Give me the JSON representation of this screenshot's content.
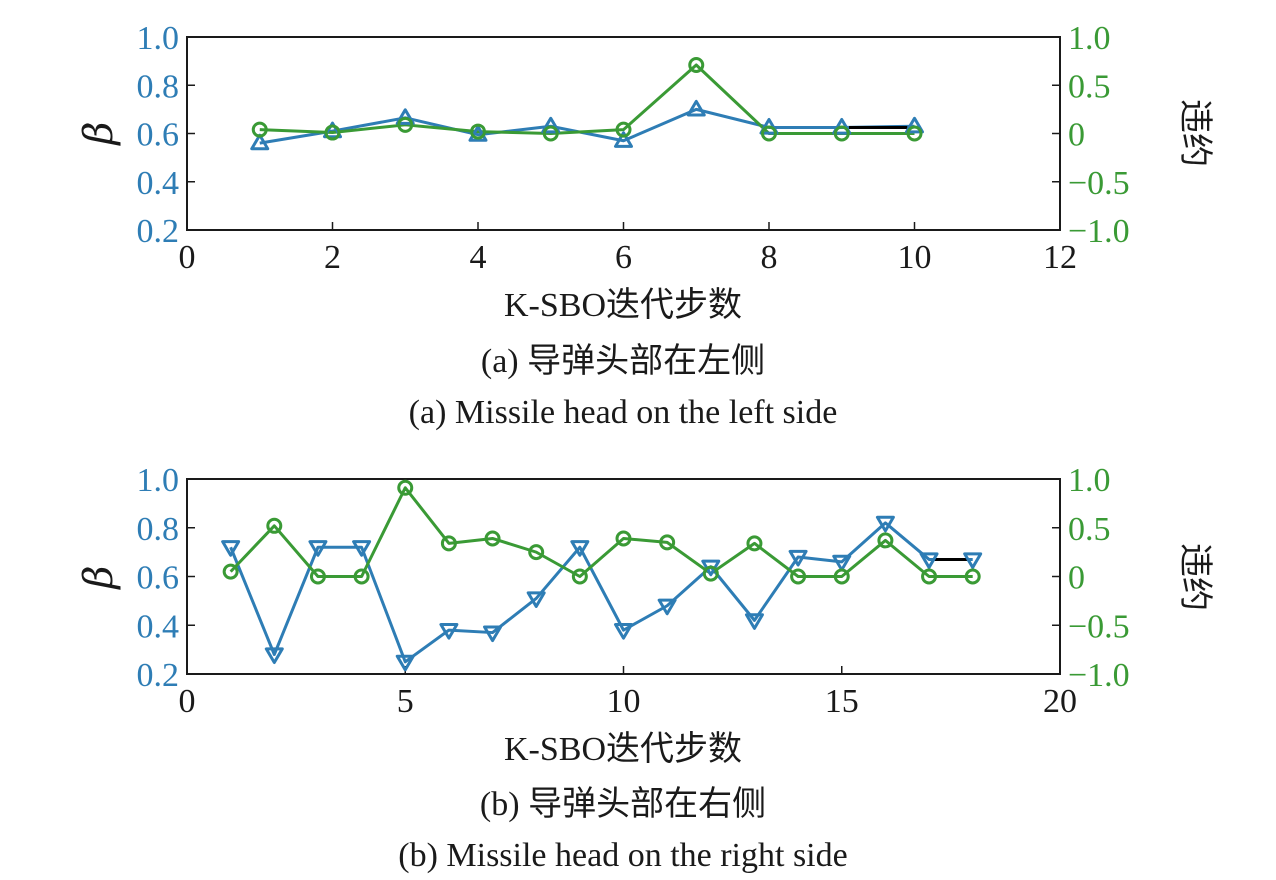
{
  "chart_data": [
    {
      "type": "line",
      "caption_cn": "(a) 导弹头部在左侧",
      "caption_en": "(a) Missile head on the left side",
      "xlabel": "K-SBO迭代步数",
      "ylabel_left": "β",
      "ylabel_right": "违约",
      "xlim": [
        0,
        12
      ],
      "ylim_left": [
        0.2,
        1.0
      ],
      "ylim_right": [
        -1.0,
        1.0
      ],
      "x_ticks": [
        "0",
        "2",
        "4",
        "6",
        "8",
        "10",
        "12"
      ],
      "y_left_ticks": [
        "0.2",
        "0.4",
        "0.6",
        "0.8",
        "1.0"
      ],
      "y_right_ticks": [
        "-1.0",
        "-0.5",
        "0",
        "0.5",
        "1.0"
      ],
      "colors": {
        "left": "#2e7db5",
        "right": "#3a9a35",
        "segment": "#000000"
      },
      "series": [
        {
          "axis": "left",
          "marker": "triangle-up",
          "x": [
            1,
            2,
            3,
            4,
            5,
            6,
            7,
            8,
            9,
            10
          ],
          "values": [
            0.56,
            0.61,
            0.665,
            0.595,
            0.63,
            0.57,
            0.7,
            0.625,
            0.625,
            0.63
          ]
        },
        {
          "axis": "right",
          "marker": "circle",
          "x": [
            1,
            2,
            3,
            4,
            5,
            6,
            7,
            8,
            9,
            10
          ],
          "values": [
            0.04,
            0.01,
            0.09,
            0.02,
            0.0,
            0.04,
            0.71,
            0.0,
            0.0,
            0.0
          ]
        }
      ],
      "segment": {
        "axis": "left",
        "x": [
          9.1,
          9.9
        ],
        "values": [
          0.625,
          0.625
        ]
      }
    },
    {
      "type": "line",
      "caption_cn": "(b) 导弹头部在右侧",
      "caption_en": "(b) Missile head on the right side",
      "xlabel": "K-SBO迭代步数",
      "ylabel_left": "β",
      "ylabel_right": "违约",
      "xlim": [
        0,
        20
      ],
      "ylim_left": [
        0.2,
        1.0
      ],
      "ylim_right": [
        -1.0,
        1.0
      ],
      "x_ticks": [
        "0",
        "5",
        "10",
        "15",
        "20"
      ],
      "y_left_ticks": [
        "0.2",
        "0.4",
        "0.6",
        "0.8",
        "1.0"
      ],
      "y_right_ticks": [
        "-1.0",
        "-0.5",
        "0",
        "0.5",
        "1.0"
      ],
      "colors": {
        "left": "#2e7db5",
        "right": "#3a9a35",
        "segment": "#000000"
      },
      "series": [
        {
          "axis": "left",
          "marker": "triangle-down",
          "x": [
            1,
            2,
            3,
            4,
            5,
            6,
            7,
            8,
            9,
            10,
            11,
            12,
            13,
            14,
            15,
            16,
            17,
            18
          ],
          "values": [
            0.72,
            0.28,
            0.72,
            0.72,
            0.25,
            0.38,
            0.37,
            0.51,
            0.72,
            0.38,
            0.48,
            0.64,
            0.42,
            0.68,
            0.66,
            0.82,
            0.67,
            0.67
          ]
        },
        {
          "axis": "right",
          "marker": "circle",
          "x": [
            1,
            2,
            3,
            4,
            5,
            6,
            7,
            8,
            9,
            10,
            11,
            12,
            13,
            14,
            15,
            16,
            17,
            18
          ],
          "values": [
            0.05,
            0.52,
            0.0,
            0.0,
            0.91,
            0.34,
            0.39,
            0.25,
            0.0,
            0.39,
            0.35,
            0.03,
            0.34,
            0.0,
            0.0,
            0.37,
            0.0,
            0.0
          ]
        }
      ],
      "segment": {
        "axis": "left",
        "x": [
          17.1,
          17.9
        ],
        "values": [
          0.67,
          0.67
        ]
      }
    }
  ]
}
